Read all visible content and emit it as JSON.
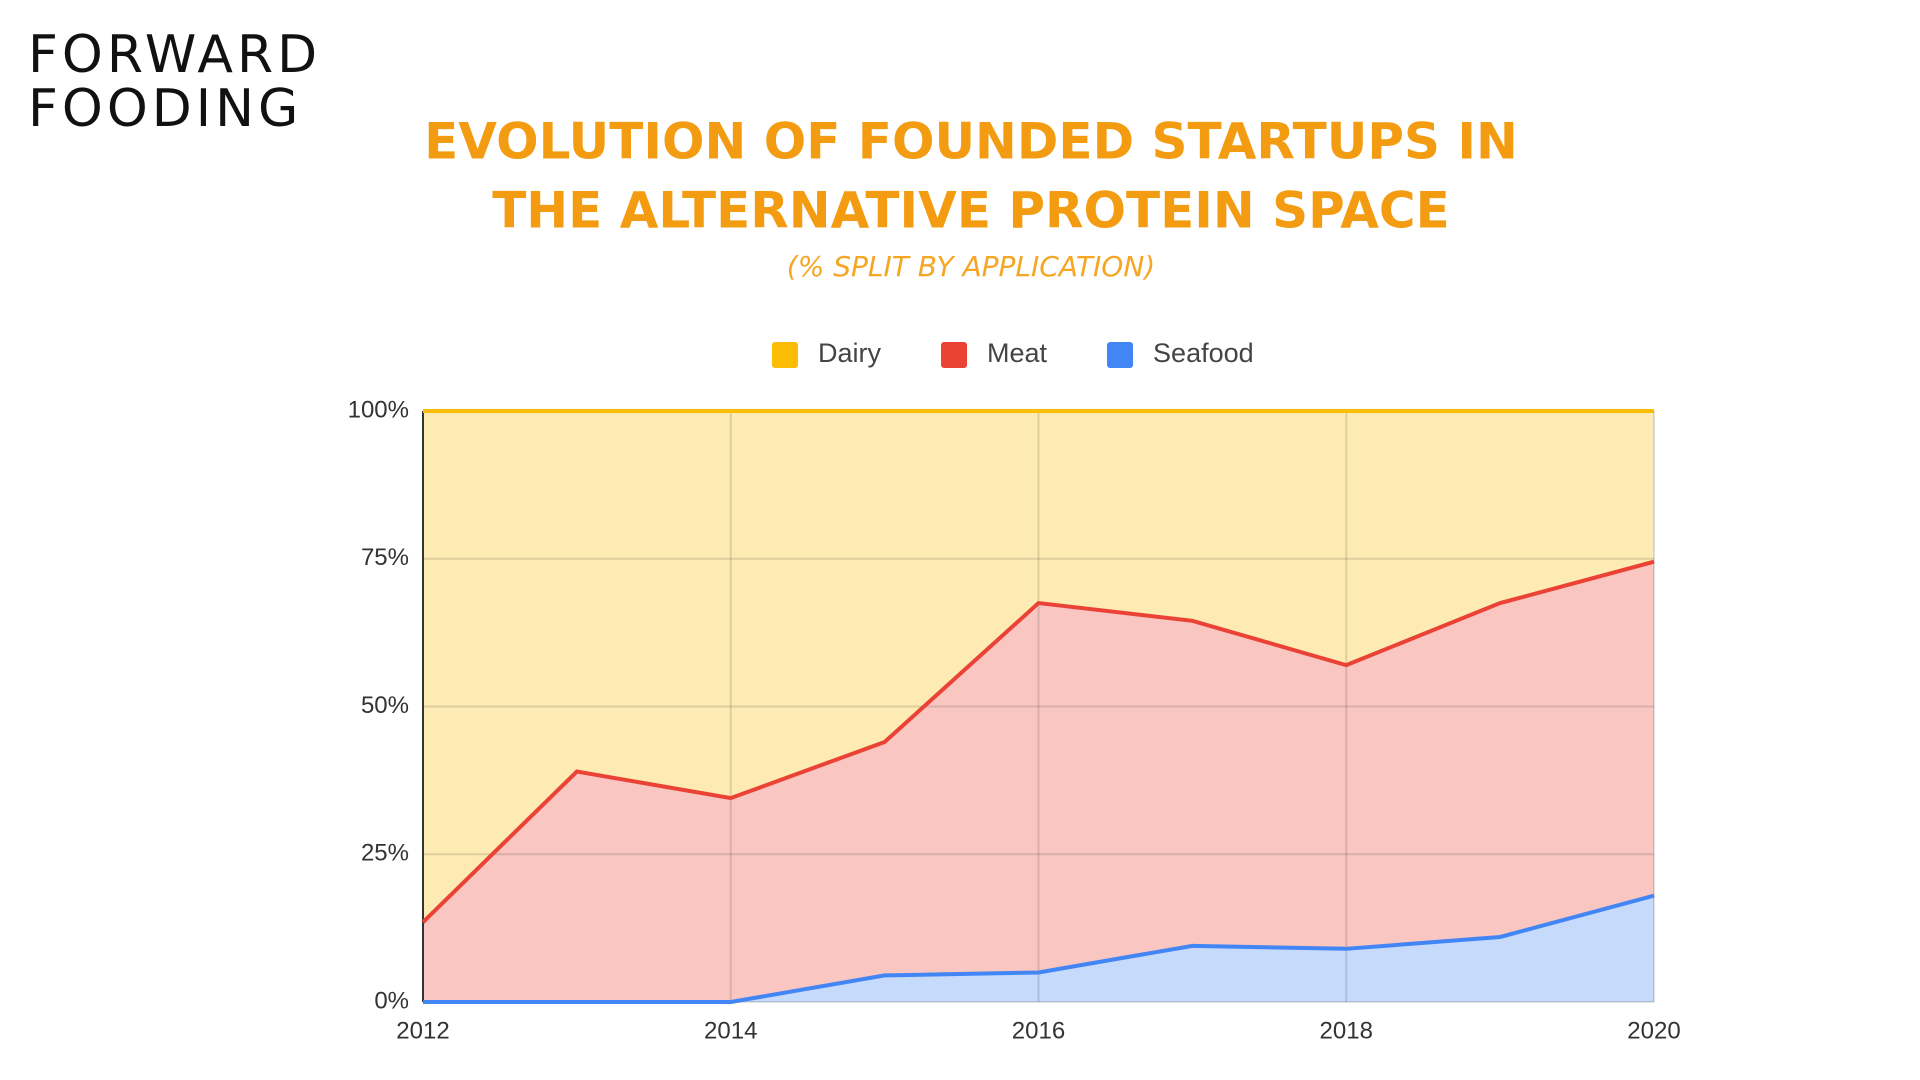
{
  "logo": [
    "FORWARD",
    "FOODING"
  ],
  "chart_data": {
    "type": "stacked-area",
    "title": [
      "EVOLUTION OF FOUNDED STARTUPS IN",
      "THE  ALTERNATIVE PROTEIN SPACE"
    ],
    "subtitle": "(% SPLIT BY APPLICATION)",
    "x": [
      2012,
      2013,
      2014,
      2015,
      2016,
      2017,
      2018,
      2019,
      2020
    ],
    "xlim": [
      2012,
      2020
    ],
    "xticks": [
      2012,
      2014,
      2016,
      2018,
      2020
    ],
    "ylim": [
      0,
      100
    ],
    "yticks": [
      {
        "value": 0,
        "label": "0%"
      },
      {
        "value": 25,
        "label": "25%"
      },
      {
        "value": 50,
        "label": "50%"
      },
      {
        "value": 75,
        "label": "75%"
      },
      {
        "value": 100,
        "label": "100%"
      }
    ],
    "grid": true,
    "legend": "top",
    "series": [
      {
        "name": "Dairy",
        "color": "#fbbc04",
        "values": [
          86.5,
          61,
          65.5,
          56,
          32.5,
          35.5,
          43,
          32.5,
          25.5
        ]
      },
      {
        "name": "Meat",
        "color": "#ea4335",
        "values": [
          13.5,
          39,
          34.5,
          39.5,
          62.5,
          55,
          48,
          56.5,
          56.5
        ]
      },
      {
        "name": "Seafood",
        "color": "#4285f4",
        "values": [
          0,
          0,
          0,
          4.5,
          5,
          9.5,
          9,
          11,
          18
        ]
      }
    ]
  }
}
